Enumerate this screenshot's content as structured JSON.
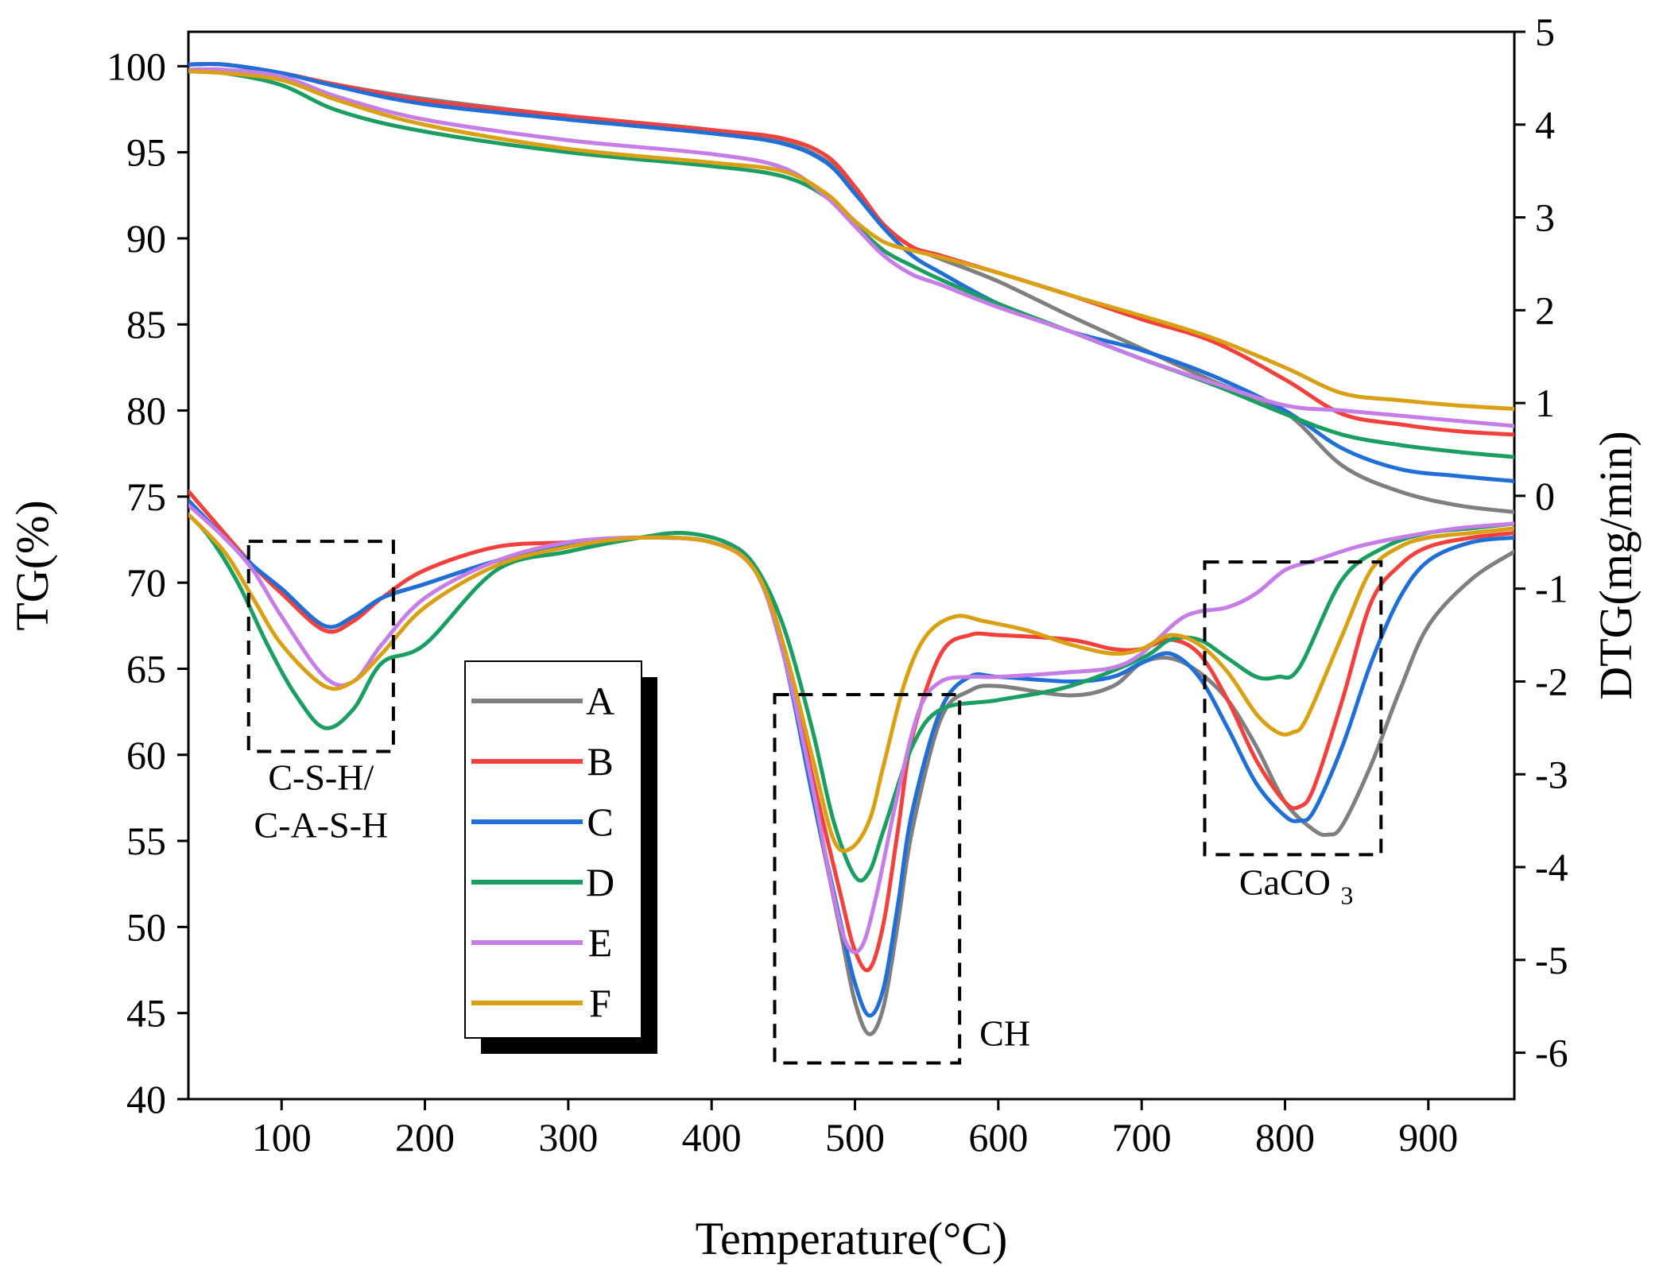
{
  "chart_data": {
    "type": "line",
    "title": "",
    "xlabel": "Temperature(°C)",
    "ylabel_left": "TG(%)",
    "ylabel_right": "DTG(mg/min)",
    "xlim": [
      35,
      960
    ],
    "ylim_left": [
      40,
      102
    ],
    "ylim_right": [
      -6.5,
      5
    ],
    "xticks": [
      100,
      200,
      300,
      400,
      500,
      600,
      700,
      800,
      900
    ],
    "xtick_labels": [
      "100",
      "200",
      "300",
      "400",
      "500",
      "600",
      "700",
      "800",
      "900"
    ],
    "yticks_left": [
      40,
      45,
      50,
      55,
      60,
      65,
      70,
      75,
      80,
      85,
      90,
      95,
      100
    ],
    "ytick_labels_left": [
      "40",
      "45",
      "50",
      "55",
      "60",
      "65",
      "70",
      "75",
      "80",
      "85",
      "90",
      "95",
      "100"
    ],
    "yticks_right": [
      -6,
      -5,
      -4,
      -3,
      -2,
      -1,
      0,
      1,
      2,
      3,
      4,
      5
    ],
    "ytick_labels_right": [
      "-6",
      "-5",
      "-4",
      "-3",
      "-2",
      "-1",
      "0",
      "1",
      "2",
      "3",
      "4",
      "5"
    ],
    "grid": false,
    "legend_position": "center-left",
    "series": [
      {
        "name": "A",
        "color": "#7f7f7f",
        "tg_x": [
          35,
          60,
          100,
          140,
          200,
          300,
          400,
          450,
          480,
          500,
          520,
          540,
          560,
          600,
          650,
          700,
          750,
          800,
          840,
          880,
          920,
          960
        ],
        "tg": [
          100.1,
          100.1,
          99.6,
          98.9,
          98.1,
          97.1,
          96.3,
          95.6,
          94.5,
          92.8,
          90.8,
          89.5,
          88.8,
          87.5,
          85.5,
          83.6,
          81.7,
          79.9,
          76.8,
          75.3,
          74.5,
          74.1
        ],
        "dtg_x": [
          35,
          60,
          80,
          100,
          130,
          150,
          170,
          200,
          250,
          300,
          350,
          400,
          430,
          450,
          470,
          490,
          500,
          510,
          520,
          530,
          540,
          560,
          580,
          600,
          650,
          680,
          700,
          720,
          740,
          760,
          780,
          800,
          820,
          830,
          840,
          860,
          880,
          900,
          930,
          960
        ],
        "dtg": [
          -0.05,
          -0.45,
          -0.75,
          -1.05,
          -1.45,
          -1.35,
          -1.1,
          -0.95,
          -0.7,
          -0.52,
          -0.45,
          -0.5,
          -0.8,
          -1.7,
          -3.2,
          -4.7,
          -5.45,
          -5.8,
          -5.5,
          -4.6,
          -3.6,
          -2.4,
          -2.1,
          -2.05,
          -2.15,
          -2.05,
          -1.8,
          -1.75,
          -1.9,
          -2.2,
          -2.7,
          -3.3,
          -3.6,
          -3.65,
          -3.55,
          -2.9,
          -2.1,
          -1.4,
          -0.9,
          -0.6
        ]
      },
      {
        "name": "B",
        "color": "#f2403c",
        "tg_x": [
          35,
          60,
          100,
          140,
          200,
          300,
          400,
          450,
          480,
          500,
          520,
          540,
          560,
          600,
          650,
          700,
          750,
          800,
          840,
          880,
          920,
          960
        ],
        "tg": [
          100.1,
          100.1,
          99.6,
          98.9,
          98.0,
          97.1,
          96.3,
          95.8,
          94.8,
          93.0,
          90.8,
          89.5,
          89.0,
          88.0,
          86.7,
          85.3,
          84.0,
          81.8,
          79.8,
          79.2,
          78.8,
          78.6
        ],
        "dtg_x": [
          35,
          60,
          80,
          100,
          130,
          150,
          170,
          200,
          250,
          300,
          350,
          400,
          430,
          450,
          470,
          490,
          500,
          510,
          520,
          530,
          540,
          560,
          580,
          600,
          650,
          680,
          700,
          720,
          740,
          760,
          780,
          800,
          810,
          820,
          840,
          860,
          880,
          900,
          930,
          960
        ],
        "dtg": [
          0.05,
          -0.4,
          -0.75,
          -1.05,
          -1.45,
          -1.35,
          -1.1,
          -0.8,
          -0.55,
          -0.5,
          -0.45,
          -0.5,
          -0.8,
          -1.6,
          -3.0,
          -4.3,
          -4.9,
          -5.1,
          -4.6,
          -3.6,
          -2.6,
          -1.7,
          -1.5,
          -1.5,
          -1.55,
          -1.65,
          -1.65,
          -1.55,
          -1.7,
          -2.2,
          -2.85,
          -3.3,
          -3.35,
          -3.15,
          -2.2,
          -1.15,
          -0.75,
          -0.55,
          -0.45,
          -0.4
        ]
      },
      {
        "name": "C",
        "color": "#1f6fd6",
        "tg_x": [
          35,
          60,
          100,
          140,
          200,
          300,
          400,
          450,
          480,
          500,
          520,
          540,
          560,
          600,
          650,
          700,
          750,
          800,
          840,
          880,
          920,
          960
        ],
        "tg": [
          100.1,
          100.1,
          99.6,
          98.8,
          97.8,
          96.9,
          96.1,
          95.5,
          94.4,
          92.6,
          90.6,
          89.0,
          88.0,
          86.2,
          84.6,
          83.5,
          82.0,
          80.0,
          77.8,
          76.6,
          76.2,
          75.9
        ],
        "dtg_x": [
          35,
          60,
          80,
          100,
          130,
          150,
          170,
          200,
          250,
          300,
          350,
          400,
          430,
          450,
          470,
          490,
          500,
          510,
          520,
          530,
          540,
          560,
          580,
          600,
          650,
          680,
          700,
          720,
          740,
          760,
          780,
          800,
          810,
          820,
          840,
          860,
          880,
          900,
          930,
          960
        ],
        "dtg": [
          -0.05,
          -0.45,
          -0.75,
          -1.0,
          -1.4,
          -1.3,
          -1.1,
          -0.95,
          -0.7,
          -0.52,
          -0.45,
          -0.5,
          -0.8,
          -1.7,
          -3.2,
          -4.6,
          -5.25,
          -5.6,
          -5.3,
          -4.4,
          -3.4,
          -2.3,
          -1.95,
          -1.95,
          -2.0,
          -1.95,
          -1.8,
          -1.7,
          -1.95,
          -2.5,
          -3.1,
          -3.45,
          -3.5,
          -3.4,
          -2.7,
          -1.8,
          -1.1,
          -0.7,
          -0.5,
          -0.45
        ]
      },
      {
        "name": "D",
        "color": "#1b9e62",
        "tg_x": [
          35,
          60,
          100,
          140,
          200,
          300,
          400,
          450,
          480,
          500,
          520,
          540,
          560,
          600,
          650,
          700,
          750,
          800,
          840,
          880,
          920,
          960
        ],
        "tg": [
          99.7,
          99.6,
          98.9,
          97.4,
          96.2,
          95.0,
          94.2,
          93.6,
          92.4,
          90.8,
          89.3,
          88.4,
          87.6,
          86.2,
          84.6,
          83.0,
          81.5,
          79.8,
          78.6,
          78.0,
          77.6,
          77.3
        ],
        "dtg_x": [
          35,
          50,
          70,
          90,
          110,
          130,
          150,
          170,
          200,
          250,
          300,
          350,
          380,
          410,
          430,
          450,
          470,
          485,
          500,
          510,
          520,
          540,
          560,
          600,
          650,
          700,
          720,
          740,
          760,
          780,
          795,
          810,
          840,
          870,
          900,
          930,
          960
        ],
        "dtg": [
          -0.2,
          -0.45,
          -0.95,
          -1.6,
          -2.15,
          -2.5,
          -2.3,
          -1.8,
          -1.6,
          -0.8,
          -0.6,
          -0.45,
          -0.4,
          -0.5,
          -0.75,
          -1.4,
          -2.5,
          -3.5,
          -4.1,
          -4.05,
          -3.6,
          -2.7,
          -2.3,
          -2.2,
          -2.05,
          -1.75,
          -1.55,
          -1.55,
          -1.75,
          -1.95,
          -1.95,
          -1.85,
          -0.9,
          -0.55,
          -0.4,
          -0.35,
          -0.3
        ]
      },
      {
        "name": "E",
        "color": "#c67ee6",
        "tg_x": [
          35,
          60,
          100,
          140,
          200,
          300,
          400,
          450,
          480,
          500,
          520,
          540,
          560,
          600,
          650,
          700,
          750,
          800,
          840,
          880,
          920,
          960
        ],
        "tg": [
          99.8,
          99.8,
          99.4,
          98.2,
          96.9,
          95.7,
          94.9,
          94.1,
          92.4,
          90.7,
          89.0,
          87.9,
          87.3,
          86.0,
          84.6,
          83.0,
          81.6,
          80.3,
          80.0,
          79.7,
          79.4,
          79.1
        ],
        "dtg_x": [
          35,
          60,
          80,
          100,
          130,
          150,
          170,
          200,
          250,
          300,
          350,
          400,
          430,
          450,
          470,
          485,
          495,
          505,
          515,
          530,
          545,
          560,
          580,
          600,
          650,
          680,
          700,
          730,
          760,
          780,
          800,
          820,
          850,
          880,
          920,
          960
        ],
        "dtg": [
          -0.1,
          -0.45,
          -0.8,
          -1.3,
          -1.95,
          -2.0,
          -1.6,
          -1.1,
          -0.7,
          -0.5,
          -0.45,
          -0.5,
          -0.8,
          -1.7,
          -3.1,
          -4.3,
          -4.85,
          -4.85,
          -4.3,
          -3.2,
          -2.3,
          -2.0,
          -1.95,
          -1.95,
          -1.9,
          -1.85,
          -1.7,
          -1.3,
          -1.2,
          -1.05,
          -0.8,
          -0.7,
          -0.55,
          -0.45,
          -0.35,
          -0.3
        ]
      },
      {
        "name": "F",
        "color": "#d9a013",
        "tg_x": [
          35,
          60,
          100,
          140,
          200,
          300,
          400,
          450,
          480,
          500,
          520,
          540,
          560,
          600,
          650,
          700,
          750,
          800,
          840,
          880,
          920,
          960
        ],
        "tg": [
          99.7,
          99.6,
          99.2,
          98.0,
          96.6,
          95.2,
          94.4,
          93.9,
          92.6,
          91.0,
          89.8,
          89.3,
          88.9,
          88.0,
          86.7,
          85.5,
          84.2,
          82.5,
          81.0,
          80.6,
          80.3,
          80.1
        ],
        "dtg_x": [
          35,
          60,
          80,
          100,
          130,
          150,
          170,
          200,
          250,
          300,
          350,
          400,
          430,
          450,
          470,
          485,
          497,
          510,
          520,
          535,
          550,
          570,
          590,
          620,
          650,
          680,
          700,
          720,
          740,
          760,
          780,
          795,
          805,
          815,
          840,
          860,
          880,
          900,
          930,
          960
        ],
        "dtg": [
          -0.2,
          -0.6,
          -1.1,
          -1.6,
          -2.05,
          -2.0,
          -1.7,
          -1.2,
          -0.75,
          -0.55,
          -0.45,
          -0.5,
          -0.8,
          -1.6,
          -2.8,
          -3.7,
          -3.8,
          -3.5,
          -2.9,
          -2.0,
          -1.5,
          -1.3,
          -1.35,
          -1.45,
          -1.6,
          -1.7,
          -1.65,
          -1.5,
          -1.6,
          -1.9,
          -2.35,
          -2.55,
          -2.55,
          -2.4,
          -1.5,
          -0.8,
          -0.55,
          -0.45,
          -0.4,
          -0.35
        ]
      }
    ],
    "annotations": [
      {
        "text_lines": [
          "C-S-H/",
          "C-A-S-H"
        ],
        "box_x": [
          77,
          178
        ],
        "box_y_left": [
          60.2,
          72.4
        ]
      },
      {
        "text_lines": [
          "CH"
        ],
        "box_x": [
          444,
          573
        ],
        "box_y_left": [
          42.1,
          63.5
        ]
      },
      {
        "text_lines": [
          "CaCO",
          "3"
        ],
        "box_x": [
          744,
          867
        ],
        "box_y_left": [
          54.2,
          71.2
        ]
      }
    ]
  }
}
